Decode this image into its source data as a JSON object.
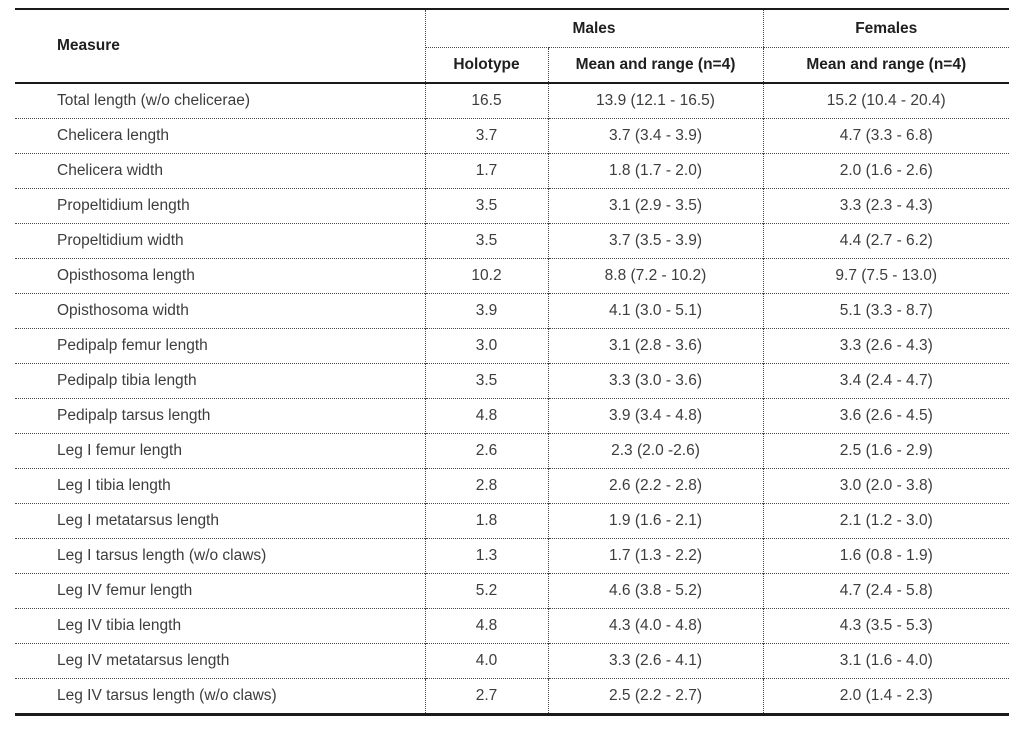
{
  "table": {
    "headers": {
      "measure": "Measure",
      "males_group": "Males",
      "females_group": "Females",
      "holotype": "Holotype",
      "males_mean_range": "Mean and range (n=4)",
      "females_mean_range": "Mean and range (n=4)"
    },
    "rows": [
      {
        "measure": "Total length (w/o chelicerae)",
        "holotype": "16.5",
        "males_mean_range": "13.9 (12.1 - 16.5)",
        "females_mean_range": "15.2 (10.4 - 20.4)"
      },
      {
        "measure": "Chelicera length",
        "holotype": "3.7",
        "males_mean_range": "3.7 (3.4 - 3.9)",
        "females_mean_range": "4.7 (3.3 - 6.8)"
      },
      {
        "measure": "Chelicera width",
        "holotype": "1.7",
        "males_mean_range": "1.8 (1.7 - 2.0)",
        "females_mean_range": "2.0 (1.6 - 2.6)"
      },
      {
        "measure": "Propeltidium length",
        "holotype": "3.5",
        "males_mean_range": "3.1 (2.9 - 3.5)",
        "females_mean_range": "3.3 (2.3 - 4.3)"
      },
      {
        "measure": "Propeltidium width",
        "holotype": "3.5",
        "males_mean_range": "3.7 (3.5 - 3.9)",
        "females_mean_range": "4.4 (2.7 - 6.2)"
      },
      {
        "measure": "Opisthosoma length",
        "holotype": "10.2",
        "males_mean_range": "8.8 (7.2 - 10.2)",
        "females_mean_range": "9.7 (7.5 - 13.0)"
      },
      {
        "measure": "Opisthosoma width",
        "holotype": "3.9",
        "males_mean_range": "4.1 (3.0 - 5.1)",
        "females_mean_range": "5.1 (3.3 - 8.7)"
      },
      {
        "measure": "Pedipalp femur length",
        "holotype": "3.0",
        "males_mean_range": "3.1 (2.8 - 3.6)",
        "females_mean_range": "3.3 (2.6 - 4.3)"
      },
      {
        "measure": "Pedipalp tibia length",
        "holotype": "3.5",
        "males_mean_range": "3.3 (3.0 - 3.6)",
        "females_mean_range": "3.4 (2.4 - 4.7)"
      },
      {
        "measure": "Pedipalp tarsus length",
        "holotype": "4.8",
        "males_mean_range": "3.9 (3.4 - 4.8)",
        "females_mean_range": "3.6 (2.6 - 4.5)"
      },
      {
        "measure": "Leg I femur length",
        "holotype": "2.6",
        "males_mean_range": "2.3 (2.0 -2.6)",
        "females_mean_range": "2.5 (1.6 - 2.9)"
      },
      {
        "measure": "Leg I tibia length",
        "holotype": "2.8",
        "males_mean_range": "2.6 (2.2 - 2.8)",
        "females_mean_range": "3.0 (2.0 - 3.8)"
      },
      {
        "measure": "Leg I metatarsus length",
        "holotype": "1.8",
        "males_mean_range": "1.9 (1.6 - 2.1)",
        "females_mean_range": "2.1 (1.2 - 3.0)"
      },
      {
        "measure": "Leg I tarsus length (w/o claws)",
        "holotype": "1.3",
        "males_mean_range": "1.7 (1.3 - 2.2)",
        "females_mean_range": "1.6 (0.8 - 1.9)"
      },
      {
        "measure": "Leg IV femur length",
        "holotype": "5.2",
        "males_mean_range": "4.6 (3.8 - 5.2)",
        "females_mean_range": "4.7 (2.4 - 5.8)"
      },
      {
        "measure": "Leg IV tibia length",
        "holotype": "4.8",
        "males_mean_range": "4.3 (4.0 - 4.8)",
        "females_mean_range": "4.3 (3.5 - 5.3)"
      },
      {
        "measure": "Leg IV metatarsus length",
        "holotype": "4.0",
        "males_mean_range": "3.3 (2.6 - 4.1)",
        "females_mean_range": "3.1 (1.6 - 4.0)"
      },
      {
        "measure": "Leg IV tarsus length (w/o claws)",
        "holotype": "2.7",
        "males_mean_range": "2.5 (2.2 - 2.7)",
        "females_mean_range": "2.0 (1.4 - 2.3)"
      }
    ],
    "colors": {
      "background": "#ffffff",
      "text_body": "#3d3d3d",
      "text_header": "#1f1f1f",
      "rule_solid": "#1a1a1a",
      "rule_dotted": "#4a4a4a"
    }
  }
}
